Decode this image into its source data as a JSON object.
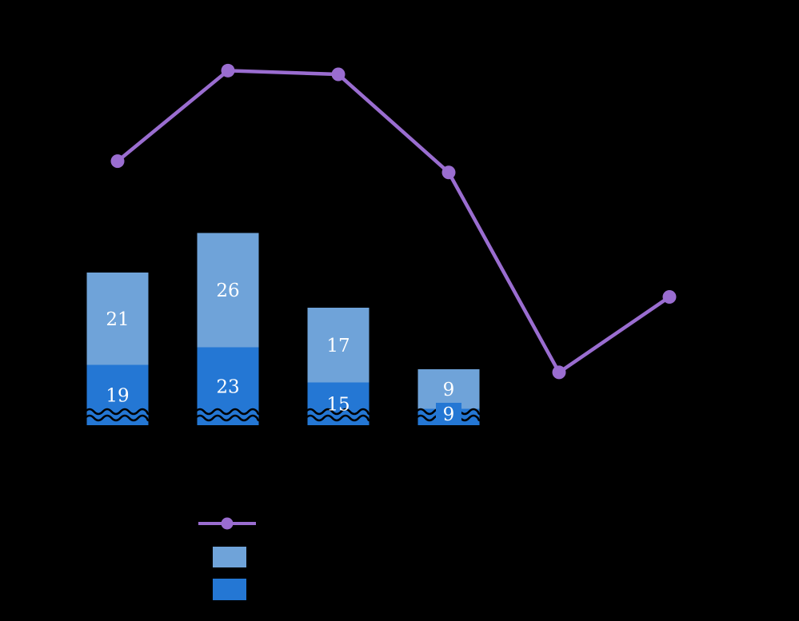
{
  "chart_data": {
    "type": "bar",
    "subtype": "stacked-bar-with-line-overlay",
    "n_categories": 6,
    "categories": [
      "",
      "",
      "",
      "",
      "",
      ""
    ],
    "series": [
      {
        "name": "light-blue-top-segment",
        "role": "bar-stack-top",
        "color": "#6fa3d9",
        "values": [
          21,
          26,
          17,
          9,
          null,
          null
        ]
      },
      {
        "name": "dark-blue-bottom-segment",
        "role": "bar-stack-bottom",
        "color": "#2477d4",
        "values": [
          19,
          23,
          15,
          9,
          null,
          null
        ]
      },
      {
        "name": "purple-trend-line",
        "role": "line",
        "color": "#9a6dd0",
        "values_estimated_0_100": [
          70,
          94,
          93,
          67,
          14,
          34
        ]
      }
    ],
    "bar_value_labels": {
      "light": [
        "21",
        "26",
        "17",
        "9"
      ],
      "dark": [
        "19",
        "23",
        "15",
        "9"
      ]
    },
    "axis_break_at_bar_bottom": true,
    "legend_position": "bottom-left",
    "legend": [
      {
        "swatch": "line-with-round-marker",
        "color": "#9a6dd0",
        "label": ""
      },
      {
        "swatch": "square",
        "color": "#6fa3d9",
        "label": ""
      },
      {
        "swatch": "square",
        "color": "#2477d4",
        "label": ""
      }
    ]
  },
  "colors": {
    "background": "#000000",
    "light_blue": "#6fa3d9",
    "dark_blue": "#2477d4",
    "purple": "#9a6dd0",
    "label_text": "#ffffff",
    "break_squiggle": "#000000"
  }
}
